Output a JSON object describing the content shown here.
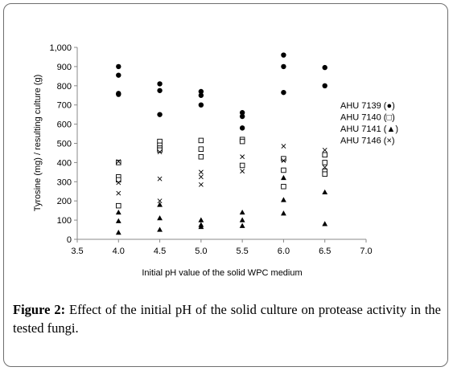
{
  "caption": {
    "label": "Figure 2:",
    "text": " Effect of the initial pH of the solid culture on protease activity in the tested fungi."
  },
  "chart_data": {
    "type": "scatter",
    "xlabel": "Initial pH value of the solid WPC medium",
    "ylabel": "Tyrosine (mg) / resulting culture (g)",
    "xlim": [
      3.5,
      7.0
    ],
    "ylim": [
      0,
      1000
    ],
    "xticks": [
      "3.5",
      "4.0",
      "4.5",
      "5.0",
      "5.5",
      "6.0",
      "6.5",
      "7.0"
    ],
    "yticks": [
      "0",
      "100",
      "200",
      "300",
      "400",
      "500",
      "600",
      "700",
      "800",
      "900",
      "1,000"
    ],
    "grid": false,
    "legend_position": "right",
    "series": [
      {
        "name": "AHU 7139 (●)",
        "marker": "filled-circle",
        "points": [
          [
            4.0,
            900
          ],
          [
            4.0,
            855
          ],
          [
            4.0,
            760
          ],
          [
            4.0,
            755
          ],
          [
            4.5,
            810
          ],
          [
            4.5,
            775
          ],
          [
            4.5,
            650
          ],
          [
            5.0,
            770
          ],
          [
            5.0,
            750
          ],
          [
            5.0,
            700
          ],
          [
            5.5,
            660
          ],
          [
            5.5,
            640
          ],
          [
            5.5,
            580
          ],
          [
            6.0,
            960
          ],
          [
            6.0,
            900
          ],
          [
            6.0,
            765
          ],
          [
            6.5,
            895
          ],
          [
            6.5,
            800
          ]
        ]
      },
      {
        "name": "AHU 7140 (□)",
        "marker": "open-square",
        "points": [
          [
            4.0,
            400
          ],
          [
            4.0,
            325
          ],
          [
            4.0,
            310
          ],
          [
            4.0,
            175
          ],
          [
            4.5,
            510
          ],
          [
            4.5,
            490
          ],
          [
            4.5,
            475
          ],
          [
            4.5,
            465
          ],
          [
            5.0,
            515
          ],
          [
            5.0,
            470
          ],
          [
            5.0,
            430
          ],
          [
            5.5,
            520
          ],
          [
            5.5,
            510
          ],
          [
            5.5,
            385
          ],
          [
            6.0,
            420
          ],
          [
            6.0,
            360
          ],
          [
            6.0,
            275
          ],
          [
            6.5,
            440
          ],
          [
            6.5,
            400
          ],
          [
            6.5,
            355
          ],
          [
            6.5,
            340
          ]
        ]
      },
      {
        "name": "AHU 7141 (▲)",
        "marker": "filled-triangle",
        "points": [
          [
            4.0,
            140
          ],
          [
            4.0,
            95
          ],
          [
            4.0,
            35
          ],
          [
            4.5,
            180
          ],
          [
            4.5,
            110
          ],
          [
            4.5,
            50
          ],
          [
            5.0,
            100
          ],
          [
            5.0,
            75
          ],
          [
            5.0,
            65
          ],
          [
            5.5,
            140
          ],
          [
            5.5,
            100
          ],
          [
            5.5,
            70
          ],
          [
            6.0,
            320
          ],
          [
            6.0,
            205
          ],
          [
            6.0,
            135
          ],
          [
            6.5,
            245
          ],
          [
            6.5,
            80
          ]
        ]
      },
      {
        "name": "AHU 7146 (×)",
        "marker": "cross",
        "points": [
          [
            4.0,
            405
          ],
          [
            4.0,
            295
          ],
          [
            4.0,
            240
          ],
          [
            4.5,
            455
          ],
          [
            4.5,
            315
          ],
          [
            4.5,
            200
          ],
          [
            5.0,
            350
          ],
          [
            5.0,
            325
          ],
          [
            5.0,
            285
          ],
          [
            5.5,
            430
          ],
          [
            5.5,
            355
          ],
          [
            6.0,
            485
          ],
          [
            6.0,
            410
          ],
          [
            6.5,
            465
          ],
          [
            6.5,
            375
          ]
        ]
      }
    ]
  }
}
